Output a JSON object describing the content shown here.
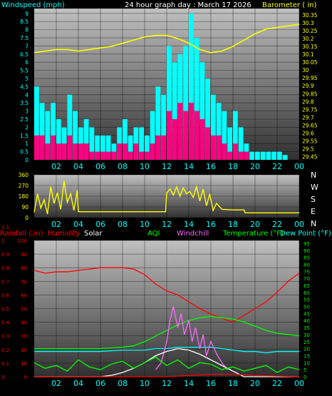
{
  "page": {
    "title": "24 hour graph day : March 17 2026",
    "colors": {
      "background": "#000000",
      "plot_top": "#b6b6b6",
      "plot_bottom": "#3a3a3a",
      "grid": "#000000",
      "cyan": "#00ffff",
      "magenta": "#ff0080",
      "yellow": "#ffff00",
      "red": "#ff0000",
      "green": "#00ff00",
      "violet": "#ff66ff",
      "white": "#ffffff",
      "orange": "#ff9900"
    }
  },
  "chart_data": [
    {
      "id": "wind_baro",
      "type": "bar",
      "title": "24 hour graph day : March 17 2026",
      "left_label": "Windspeed (mph)",
      "right_label": "Barometer ( in)",
      "x_ticks": [
        "02",
        "04",
        "06",
        "08",
        "10",
        "12",
        "14",
        "16",
        "18",
        "20",
        "22",
        "00"
      ],
      "left_ticks": [
        "0",
        "0.5",
        "1",
        "1.5",
        "2",
        "2.5",
        "3",
        "3.5",
        "4",
        "4.5",
        "5",
        "5.5",
        "6",
        "6.5",
        "7",
        "7.5",
        "8",
        "8.5",
        "9"
      ],
      "right_ticks": [
        "29.45",
        "29.5",
        "29.55",
        "29.6",
        "29.65",
        "29.7",
        "29.75",
        "29.8",
        "29.85",
        "29.9",
        "29.95",
        "30",
        "30.05",
        "30.1",
        "30.15",
        "30.2",
        "30.25",
        "30.3",
        "30.35"
      ],
      "ylim_left": [
        0,
        9.3
      ],
      "ylim_right": [
        29.43,
        30.39
      ],
      "xlim_hours": [
        0,
        24
      ],
      "series": [
        {
          "name": "Windspeed (mph)",
          "color": "#00ffff",
          "style": "bars",
          "x": [
            0,
            0.5,
            1,
            1.5,
            2,
            2.5,
            3,
            3.5,
            4,
            4.5,
            5,
            5.5,
            6,
            6.5,
            7,
            7.5,
            8,
            8.5,
            9,
            9.5,
            10,
            10.5,
            11,
            11.5,
            12,
            12.5,
            13,
            13.5,
            14,
            14.5,
            15,
            15.5,
            16,
            16.5,
            17,
            17.5,
            18,
            18.5,
            19,
            19.5,
            20,
            20.5,
            21,
            21.5,
            22,
            22.5,
            23,
            23.5
          ],
          "values": [
            4.5,
            3.5,
            3,
            3.5,
            2.5,
            2,
            4,
            3,
            2,
            2.5,
            2,
            1.5,
            1.5,
            1.5,
            1,
            2,
            2.5,
            1.5,
            2,
            2,
            1.5,
            3,
            4.5,
            4,
            7,
            6,
            6.5,
            7,
            9,
            7.5,
            6,
            5,
            4,
            3.5,
            3,
            2,
            3,
            2,
            1,
            0.5,
            0.5,
            0.5,
            0.5,
            0.5,
            0.5,
            0.3,
            0,
            0
          ]
        },
        {
          "name": "Wind gust",
          "color": "#ff0080",
          "style": "bars",
          "x": [
            0,
            0.5,
            1,
            1.5,
            2,
            2.5,
            3,
            3.5,
            4,
            4.5,
            5,
            5.5,
            6,
            6.5,
            7,
            7.5,
            8,
            8.5,
            9,
            9.5,
            10,
            10.5,
            11,
            11.5,
            12,
            12.5,
            13,
            13.5,
            14,
            14.5,
            15,
            15.5,
            16,
            16.5,
            17,
            17.5,
            18,
            18.5,
            19,
            19.5,
            20,
            20.5,
            21,
            21.5,
            22,
            22.5,
            23,
            23.5
          ],
          "values": [
            1.5,
            1.5,
            1,
            1.5,
            1,
            1,
            1.5,
            1,
            1,
            1,
            0.5,
            0.5,
            0.5,
            0.5,
            0.5,
            1,
            1,
            0.5,
            1,
            0.5,
            0.5,
            1,
            1.5,
            1.5,
            3,
            2.5,
            3.5,
            3,
            3.5,
            3,
            2.5,
            2,
            1.5,
            1.5,
            1,
            0.5,
            1,
            0.5,
            0.5,
            0,
            0,
            0,
            0,
            0,
            0,
            0,
            0,
            0
          ]
        },
        {
          "name": "Barometer ( in)",
          "color": "#ffff00",
          "style": "line",
          "x": [
            0,
            1,
            2,
            3,
            4,
            5,
            6,
            7,
            8,
            9,
            10,
            11,
            12,
            13,
            14,
            15,
            16,
            17,
            18,
            19,
            20,
            21,
            22,
            23,
            24
          ],
          "values": [
            30.11,
            30.12,
            30.13,
            30.13,
            30.12,
            30.13,
            30.14,
            30.15,
            30.17,
            30.19,
            30.21,
            30.22,
            30.22,
            30.2,
            30.17,
            30.13,
            30.11,
            30.12,
            30.15,
            30.19,
            30.23,
            30.26,
            30.27,
            30.28,
            30.29
          ]
        }
      ]
    },
    {
      "id": "wind_dir",
      "type": "line",
      "x_ticks": [
        "02",
        "04",
        "06",
        "08",
        "10",
        "12",
        "14",
        "16",
        "18",
        "20",
        "22",
        "00"
      ],
      "left_ticks": [
        "0",
        "90",
        "180",
        "270",
        "360"
      ],
      "right_ticks": [
        "N",
        "W",
        "S",
        "E",
        "N"
      ],
      "ylim": [
        0,
        360
      ],
      "series": [
        {
          "name": "Wind direction",
          "color": "#ffff00",
          "x": [
            0,
            0.3,
            0.6,
            0.9,
            1.2,
            1.5,
            1.8,
            2.1,
            2.4,
            2.7,
            3,
            3.3,
            3.6,
            3.9,
            4,
            6,
            8,
            10,
            11.9,
            12,
            12.3,
            12.6,
            12.9,
            13.2,
            13.5,
            13.8,
            14.1,
            14.4,
            14.7,
            15,
            15.3,
            15.6,
            15.9,
            16.2,
            16.5,
            17,
            18,
            19,
            19.1,
            20,
            22,
            24
          ],
          "values": [
            45,
            200,
            80,
            150,
            30,
            260,
            120,
            210,
            70,
            310,
            130,
            200,
            60,
            230,
            50,
            50,
            50,
            50,
            50,
            210,
            240,
            190,
            260,
            180,
            250,
            200,
            220,
            170,
            260,
            140,
            240,
            100,
            200,
            60,
            120,
            70,
            65,
            65,
            40,
            40,
            40,
            40
          ]
        }
      ]
    },
    {
      "id": "multi",
      "type": "line",
      "labels": {
        "rainfall": "Rainfall (.in)",
        "humidity": "Humidity",
        "solar": "Solar",
        "aqi": "AQI",
        "windchill": "Windchill",
        "temperature": "Temperature (°F)",
        "dewpoint": "Dew Point (°F)"
      },
      "x_ticks": [
        "02",
        "04",
        "06",
        "08",
        "10",
        "12",
        "14",
        "16",
        "18",
        "20",
        "22",
        "00"
      ],
      "rain_ticks": [
        "0",
        "0.1",
        "0.2",
        "0.3",
        "0.4",
        "0.5",
        "0.6",
        "0.7",
        "0.8",
        "0.9",
        "1",
        "1.1"
      ],
      "humidity_ticks": [
        "0",
        "10",
        "20",
        "30",
        "40",
        "50",
        "60",
        "70",
        "80",
        "90",
        "100"
      ],
      "temp_ticks": [
        "0",
        "5",
        "10",
        "15",
        "20",
        "25",
        "30",
        "35",
        "40",
        "45",
        "50",
        "55",
        "60",
        "65",
        "70",
        "75",
        "80",
        "85",
        "90",
        "95"
      ],
      "ylim_humidity": [
        0,
        100
      ],
      "ylim_temp": [
        0,
        97
      ],
      "series": [
        {
          "name": "Humidity",
          "color": "#ff0000",
          "x": [
            0,
            1,
            2,
            3,
            4,
            5,
            6,
            7,
            8,
            9,
            10,
            11,
            12,
            13,
            14,
            15,
            16,
            17,
            18,
            19,
            20,
            21,
            22,
            23,
            24
          ],
          "values": [
            78,
            76,
            77,
            77,
            78,
            79,
            80,
            80,
            80,
            79,
            75,
            68,
            63,
            60,
            55,
            50,
            46,
            43,
            40,
            45,
            50,
            55,
            62,
            70,
            76
          ]
        },
        {
          "name": "Temperature (°F)",
          "color": "#00ff00",
          "x": [
            0,
            2,
            4,
            6,
            8,
            9,
            10,
            11,
            12,
            13,
            14,
            15,
            16,
            17,
            18,
            19,
            20,
            21,
            22,
            23,
            24
          ],
          "values": [
            20,
            20,
            20,
            20,
            21,
            22,
            25,
            29,
            33,
            37,
            40,
            42,
            43,
            42,
            41,
            39,
            36,
            33,
            31,
            30,
            29
          ]
        },
        {
          "name": "Dew Point (°F)",
          "color": "#00ffff",
          "x": [
            0,
            2,
            4,
            6,
            8,
            10,
            11,
            12,
            13,
            14,
            15,
            16,
            17,
            18,
            19,
            20,
            21,
            22,
            23,
            24
          ],
          "values": [
            18,
            18,
            18,
            18,
            19,
            19,
            20,
            20,
            21,
            21,
            21,
            21,
            20,
            19,
            18,
            18,
            17,
            18,
            18,
            18
          ]
        },
        {
          "name": "Windchill",
          "color": "#ff66ff",
          "x": [
            11,
            11.5,
            12,
            12.3,
            12.6,
            13,
            13.3,
            13.6,
            14,
            14.3,
            14.6,
            15,
            15.3,
            15.6,
            16,
            16.3,
            16.6,
            17,
            17.5
          ],
          "values": [
            5,
            10,
            25,
            40,
            50,
            35,
            45,
            30,
            40,
            25,
            35,
            20,
            30,
            15,
            25,
            20,
            15,
            10,
            5
          ]
        },
        {
          "name": "Solar",
          "color": "#ffffff",
          "x": [
            0,
            6,
            7,
            8,
            9,
            10,
            11,
            12,
            13,
            14,
            15,
            16,
            17,
            18,
            19,
            24
          ],
          "values": [
            0,
            0,
            1,
            3,
            6,
            10,
            15,
            18,
            20,
            19,
            16,
            12,
            8,
            4,
            0,
            0
          ]
        },
        {
          "name": "AQI",
          "color": "#00ff00",
          "x": [
            0,
            1,
            2,
            3,
            4,
            5,
            6,
            7,
            8,
            9,
            10,
            11,
            12,
            13,
            14,
            15,
            16,
            17,
            18,
            19,
            20,
            21,
            22,
            23,
            24
          ],
          "values": [
            10,
            6,
            8,
            4,
            12,
            7,
            5,
            9,
            11,
            6,
            10,
            14,
            8,
            12,
            6,
            10,
            9,
            5,
            7,
            4,
            6,
            8,
            3,
            7,
            5
          ]
        },
        {
          "name": "Rainfall (.in)",
          "color": "#ff0000",
          "x": [
            0,
            12,
            14,
            16,
            18,
            20,
            24
          ],
          "values": [
            0,
            0,
            0.01,
            0.02,
            0.02,
            0.01,
            0
          ]
        }
      ]
    }
  ]
}
